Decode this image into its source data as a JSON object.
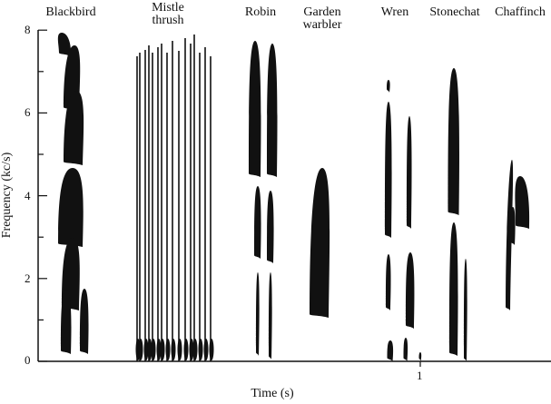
{
  "species": [
    "Blackbird",
    "Mistle\nthrush",
    "Robin",
    "Garden\nwarbler",
    "Wren",
    "Stonechat",
    "Chaffinch"
  ],
  "y_axis": {
    "label": "Frequency (kc/s)",
    "ticks": [
      "0",
      "2",
      "4",
      "6",
      "8"
    ],
    "range": [
      0,
      8
    ]
  },
  "x_axis": {
    "label": "Time (s)",
    "ticks": [
      "1"
    ]
  },
  "colors": {
    "ink": "#111111",
    "background": "#ffffff"
  }
}
